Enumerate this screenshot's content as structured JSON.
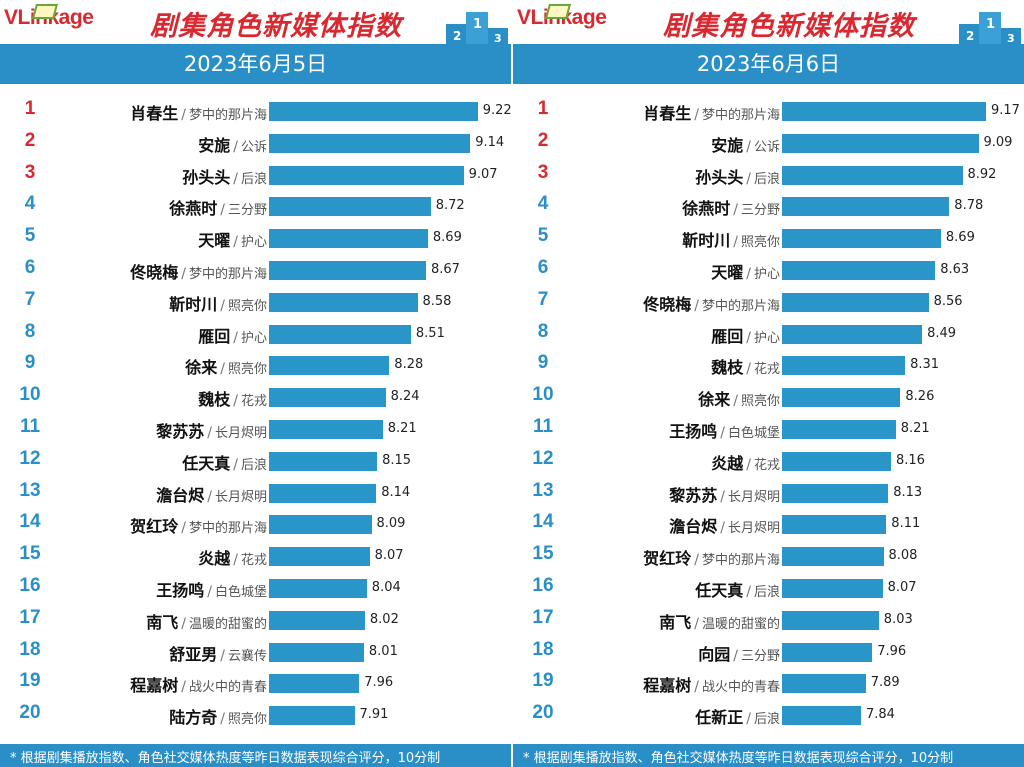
{
  "brand": {
    "logo_v": "VL",
    "logo_rest": "inkage",
    "title": "剧集角色新媒体指数"
  },
  "colors": {
    "accent": "#2a8fc7",
    "bar": "#2a95c9",
    "rank_top": "#d9282f",
    "title": "#d9282f"
  },
  "footer_note": "* 根据剧集播放指数、角色社交媒体热度等昨日数据表现综合评分，10分制",
  "chart_data": [
    {
      "type": "bar",
      "orientation": "horizontal",
      "date": "2023年6月5日",
      "xlim": [
        7.0,
        9.35
      ],
      "rows": [
        {
          "rank": "1",
          "name": "肖春生",
          "drama": "梦中的那片海",
          "value": 9.22
        },
        {
          "rank": "2",
          "name": "安旎",
          "drama": "公诉",
          "value": 9.14
        },
        {
          "rank": "3",
          "name": "孙头头",
          "drama": "后浪",
          "value": 9.07
        },
        {
          "rank": "4",
          "name": "徐燕时",
          "drama": "三分野",
          "value": 8.72
        },
        {
          "rank": "5",
          "name": "天曜",
          "drama": "护心",
          "value": 8.69
        },
        {
          "rank": "6",
          "name": "佟晓梅",
          "drama": "梦中的那片海",
          "value": 8.67
        },
        {
          "rank": "7",
          "name": "靳时川",
          "drama": "照亮你",
          "value": 8.58
        },
        {
          "rank": "8",
          "name": "雁回",
          "drama": "护心",
          "value": 8.51
        },
        {
          "rank": "9",
          "name": "徐来",
          "drama": "照亮你",
          "value": 8.28
        },
        {
          "rank": "10",
          "name": "魏枝",
          "drama": "花戎",
          "value": 8.24
        },
        {
          "rank": "11",
          "name": "黎苏苏",
          "drama": "长月烬明",
          "value": 8.21
        },
        {
          "rank": "12",
          "name": "任天真",
          "drama": "后浪",
          "value": 8.15
        },
        {
          "rank": "13",
          "name": "澹台烬",
          "drama": "长月烬明",
          "value": 8.14
        },
        {
          "rank": "14",
          "name": "贺红玲",
          "drama": "梦中的那片海",
          "value": 8.09
        },
        {
          "rank": "15",
          "name": "炎越",
          "drama": "花戎",
          "value": 8.07
        },
        {
          "rank": "16",
          "name": "王扬鸣",
          "drama": "白色城堡",
          "value": 8.04
        },
        {
          "rank": "17",
          "name": "南飞",
          "drama": "温暖的甜蜜的",
          "value": 8.02
        },
        {
          "rank": "18",
          "name": "舒亚男",
          "drama": "云襄传",
          "value": 8.01
        },
        {
          "rank": "19",
          "name": "程嘉树",
          "drama": "战火中的青春",
          "value": 7.96
        },
        {
          "rank": "20",
          "name": "陆方奇",
          "drama": "照亮你",
          "value": 7.91
        }
      ]
    },
    {
      "type": "bar",
      "orientation": "horizontal",
      "date": "2023年6月6日",
      "xlim": [
        7.0,
        9.35
      ],
      "rows": [
        {
          "rank": "1",
          "name": "肖春生",
          "drama": "梦中的那片海",
          "value": 9.17
        },
        {
          "rank": "2",
          "name": "安旎",
          "drama": "公诉",
          "value": 9.09
        },
        {
          "rank": "3",
          "name": "孙头头",
          "drama": "后浪",
          "value": 8.92
        },
        {
          "rank": "4",
          "name": "徐燕时",
          "drama": "三分野",
          "value": 8.78
        },
        {
          "rank": "5",
          "name": "靳时川",
          "drama": "照亮你",
          "value": 8.69
        },
        {
          "rank": "6",
          "name": "天曜",
          "drama": "护心",
          "value": 8.63
        },
        {
          "rank": "7",
          "name": "佟晓梅",
          "drama": "梦中的那片海",
          "value": 8.56
        },
        {
          "rank": "8",
          "name": "雁回",
          "drama": "护心",
          "value": 8.49
        },
        {
          "rank": "9",
          "name": "魏枝",
          "drama": "花戎",
          "value": 8.31
        },
        {
          "rank": "10",
          "name": "徐来",
          "drama": "照亮你",
          "value": 8.26
        },
        {
          "rank": "11",
          "name": "王扬鸣",
          "drama": "白色城堡",
          "value": 8.21
        },
        {
          "rank": "12",
          "name": "炎越",
          "drama": "花戎",
          "value": 8.16
        },
        {
          "rank": "13",
          "name": "黎苏苏",
          "drama": "长月烬明",
          "value": 8.13
        },
        {
          "rank": "14",
          "name": "澹台烬",
          "drama": "长月烬明",
          "value": 8.11
        },
        {
          "rank": "15",
          "name": "贺红玲",
          "drama": "梦中的那片海",
          "value": 8.08
        },
        {
          "rank": "16",
          "name": "任天真",
          "drama": "后浪",
          "value": 8.07
        },
        {
          "rank": "17",
          "name": "南飞",
          "drama": "温暖的甜蜜的",
          "value": 8.03
        },
        {
          "rank": "18",
          "name": "向园",
          "drama": "三分野",
          "value": 7.96
        },
        {
          "rank": "19",
          "name": "程嘉树",
          "drama": "战火中的青春",
          "value": 7.89
        },
        {
          "rank": "20",
          "name": "任新正",
          "drama": "后浪",
          "value": 7.84
        }
      ]
    }
  ]
}
